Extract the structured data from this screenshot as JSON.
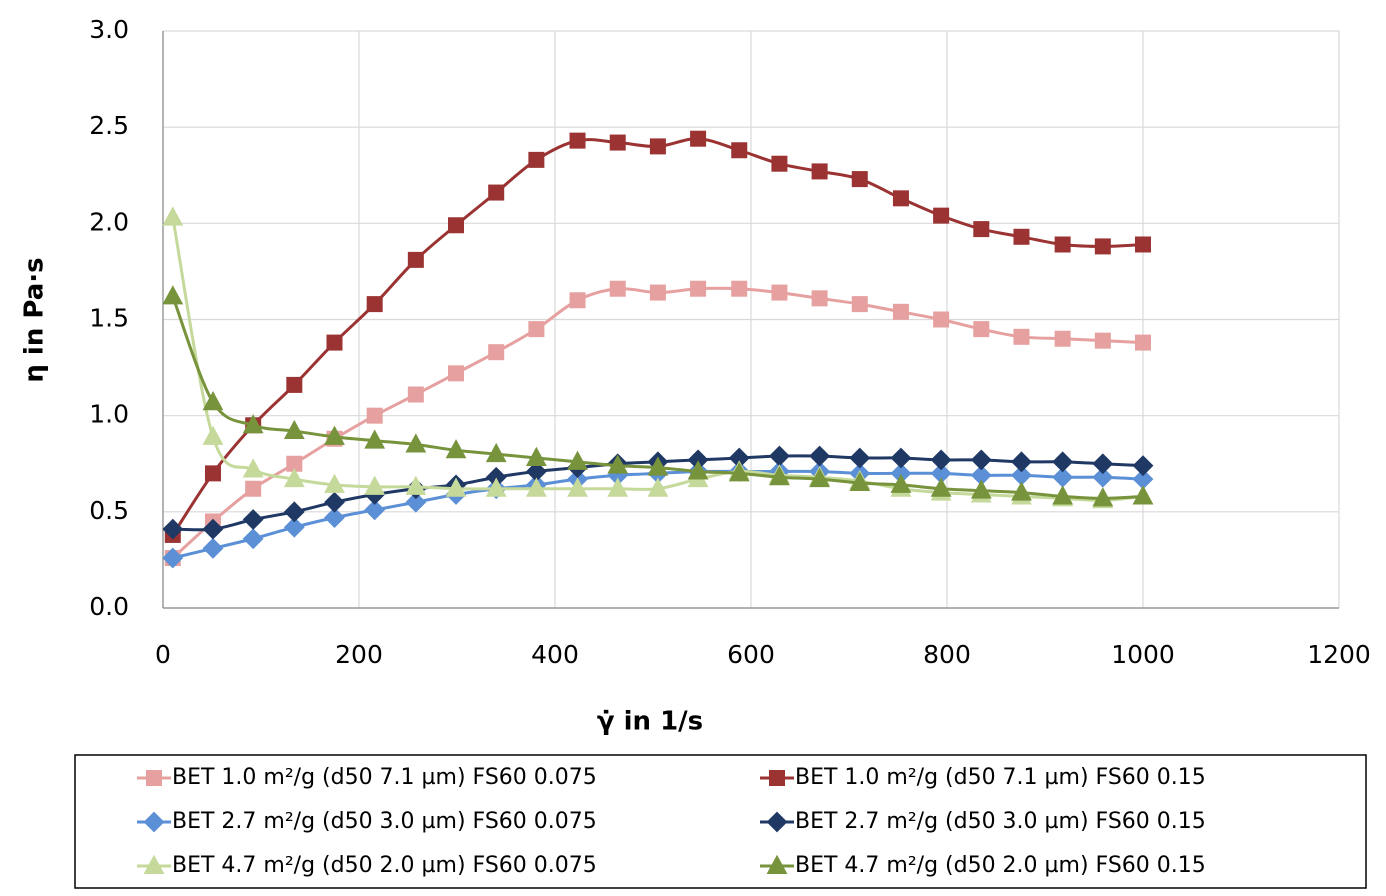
{
  "chart_data": {
    "type": "line",
    "x_label": "γ̇ in 1/s",
    "y_label": "η in Pa·s",
    "x": [
      10,
      51,
      92,
      134,
      175,
      216,
      258,
      299,
      340,
      381,
      423,
      464,
      505,
      546,
      588,
      629,
      670,
      711,
      753,
      794,
      835,
      876,
      918,
      959,
      1000
    ],
    "series": [
      {
        "name": "BET 1.0 m²/g (d50 7.1 µm) FS60 0.075",
        "color": "#e6a0a0",
        "marker": "square",
        "values": [
          0.26,
          0.45,
          0.62,
          0.75,
          0.88,
          1.0,
          1.11,
          1.22,
          1.33,
          1.45,
          1.6,
          1.66,
          1.64,
          1.66,
          1.66,
          1.64,
          1.61,
          1.58,
          1.54,
          1.5,
          1.45,
          1.41,
          1.4,
          1.39,
          1.38
        ]
      },
      {
        "name": "BET 1.0 m²/g (d50 7.1 µm) FS60 0.15",
        "color": "#9b3333",
        "marker": "square",
        "values": [
          0.38,
          0.7,
          0.95,
          1.16,
          1.38,
          1.58,
          1.81,
          1.99,
          2.16,
          2.33,
          2.43,
          2.42,
          2.4,
          2.44,
          2.38,
          2.31,
          2.27,
          2.23,
          2.13,
          2.04,
          1.97,
          1.93,
          1.89,
          1.88,
          1.89
        ]
      },
      {
        "name": "BET 2.7 m²/g (d50 3.0 µm) FS60 0.075",
        "color": "#5b8fd6",
        "marker": "diamond",
        "values": [
          0.26,
          0.31,
          0.36,
          0.42,
          0.47,
          0.51,
          0.55,
          0.59,
          0.62,
          0.64,
          0.67,
          0.69,
          0.7,
          0.71,
          0.71,
          0.71,
          0.71,
          0.7,
          0.7,
          0.7,
          0.69,
          0.69,
          0.68,
          0.68,
          0.67
        ]
      },
      {
        "name": "BET 2.7 m²/g (d50 3.0 µm) FS60 0.15",
        "color": "#1f3864",
        "marker": "diamond",
        "values": [
          0.41,
          0.41,
          0.46,
          0.5,
          0.55,
          0.59,
          0.62,
          0.64,
          0.68,
          0.71,
          0.73,
          0.75,
          0.76,
          0.77,
          0.78,
          0.79,
          0.79,
          0.78,
          0.78,
          0.77,
          0.77,
          0.76,
          0.76,
          0.75,
          0.74
        ]
      },
      {
        "name": "BET 4.7 m²/g (d50 2.0 µm) FS60 0.075",
        "color": "#c5d99b",
        "marker": "triangle",
        "values": [
          2.03,
          0.89,
          0.72,
          0.67,
          0.64,
          0.63,
          0.63,
          0.62,
          0.62,
          0.62,
          0.62,
          0.62,
          0.62,
          0.67,
          0.71,
          0.69,
          0.68,
          0.66,
          0.62,
          0.6,
          0.59,
          0.58,
          0.57,
          0.56,
          0.58
        ]
      },
      {
        "name": "BET 4.7 m²/g (d50 2.0 µm) FS60 0.15",
        "color": "#77933c",
        "marker": "triangle",
        "values": [
          1.62,
          1.07,
          0.95,
          0.92,
          0.89,
          0.87,
          0.85,
          0.82,
          0.8,
          0.78,
          0.76,
          0.74,
          0.73,
          0.71,
          0.7,
          0.68,
          0.67,
          0.65,
          0.64,
          0.62,
          0.61,
          0.6,
          0.58,
          0.57,
          0.58
        ]
      }
    ],
    "xlim": [
      0,
      1200
    ],
    "xticks": [
      0,
      200,
      400,
      600,
      800,
      1000,
      1200
    ],
    "ylim": [
      0,
      3
    ],
    "yticks": [
      {
        "value": 0,
        "label": "0.0"
      },
      0.5,
      {
        "value": 1,
        "label": "1.0"
      },
      1.5,
      {
        "value": 2,
        "label": "2.0"
      },
      2.5,
      {
        "value": 3,
        "label": "3.0"
      }
    ],
    "grid": true,
    "legend": "bottom"
  }
}
